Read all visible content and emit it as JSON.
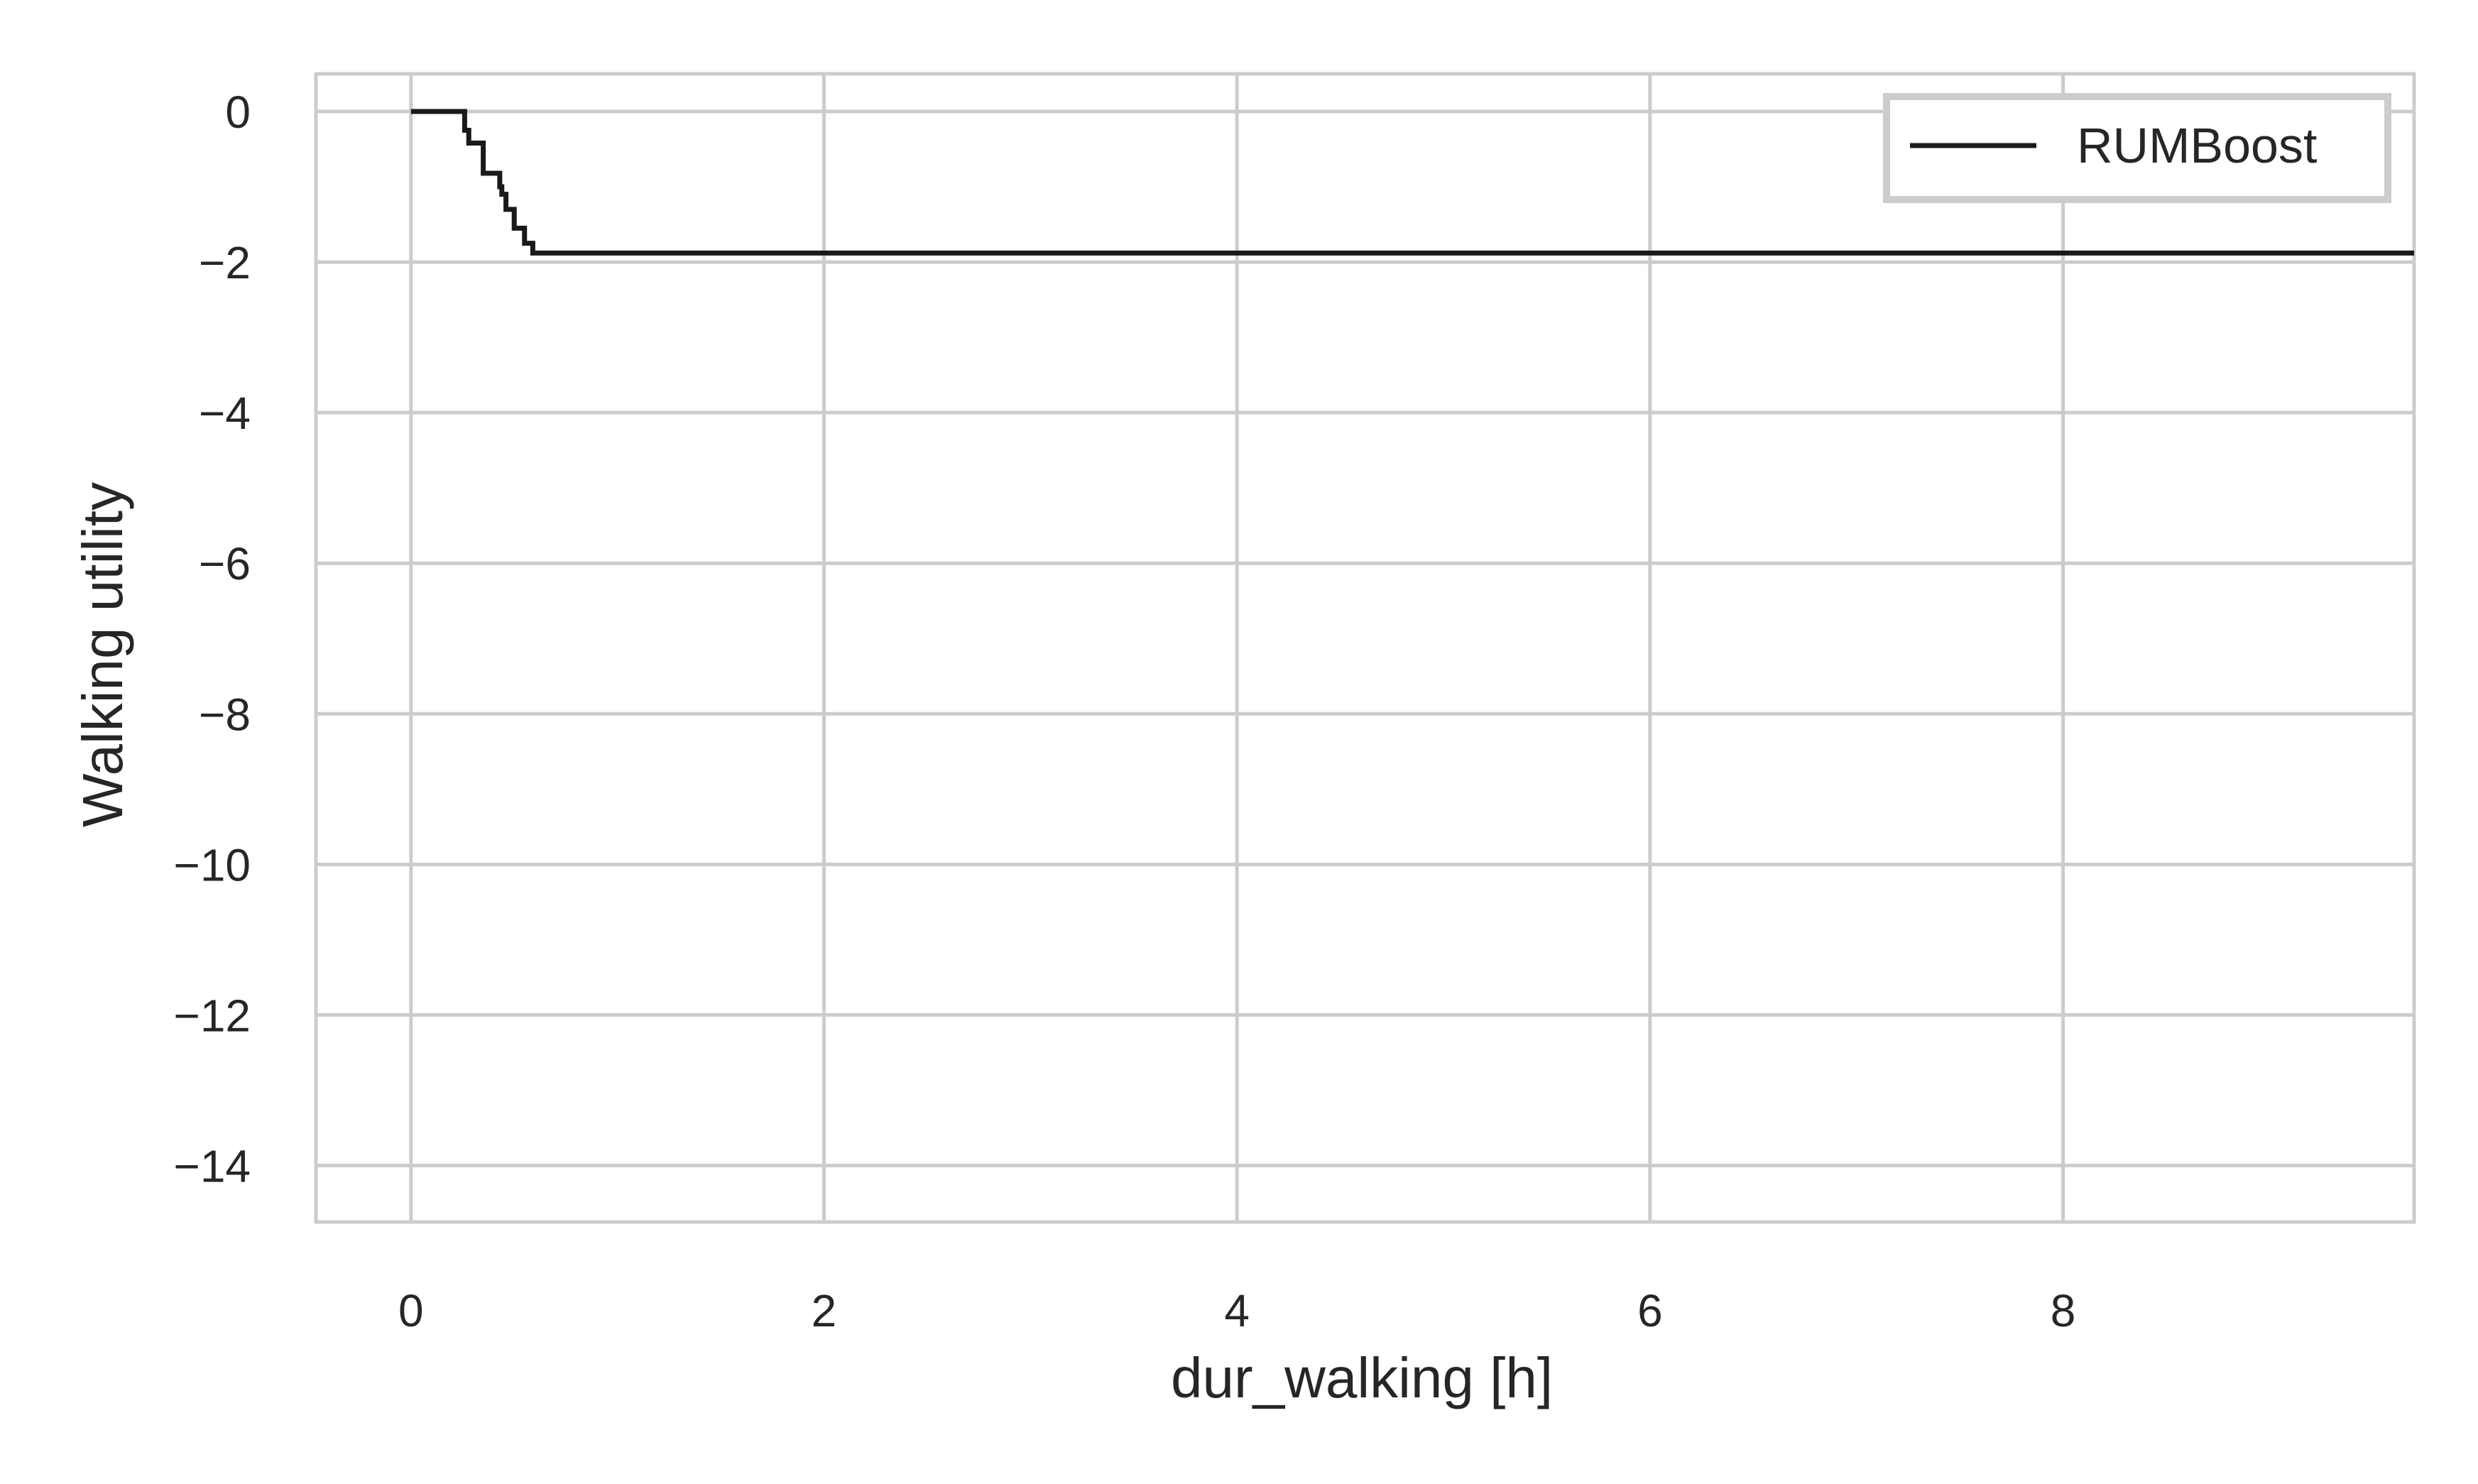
{
  "chart_data": {
    "type": "line",
    "title": "",
    "xlabel": "dur_walking [h]",
    "ylabel": "Walking utility",
    "xlim": [
      -0.46,
      9.7
    ],
    "ylim": [
      -14.75,
      0.5
    ],
    "grid": true,
    "legend_position": "top-right",
    "x_ticks": [
      0,
      2,
      4,
      6,
      8
    ],
    "x_tick_labels": [
      "0",
      "2",
      "4",
      "6",
      "8"
    ],
    "y_ticks": [
      0,
      -2,
      -4,
      -6,
      -8,
      -10,
      -12,
      -14
    ],
    "y_tick_labels": [
      "0",
      "−2",
      "−4",
      "−6",
      "−8",
      "−10",
      "−12",
      "−14"
    ],
    "colors": {
      "line": "#1a1a1a",
      "grid": "#cccccc",
      "frame": "#cccccc"
    },
    "series": [
      {
        "name": "RUMBoost",
        "step": true,
        "x": [
          0,
          0.24,
          0.26,
          0.28,
          0.33,
          0.35,
          0.37,
          0.42,
          0.43,
          0.44,
          0.46,
          0.5,
          0.55,
          0.59,
          9.7
        ],
        "y": [
          0,
          0,
          -0.25,
          -0.42,
          -0.42,
          -0.82,
          -0.82,
          -0.82,
          -1.0,
          -1.1,
          -1.3,
          -1.55,
          -1.75,
          -1.88,
          -1.88
        ]
      }
    ]
  }
}
